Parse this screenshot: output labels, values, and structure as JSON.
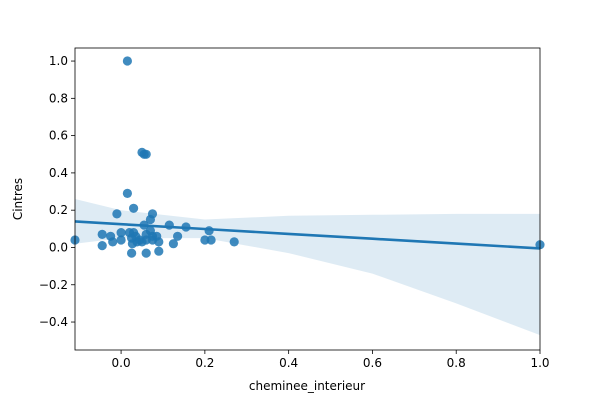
{
  "chart_data": {
    "type": "scatter",
    "title": "",
    "xlabel": "cheminee_interieur",
    "ylabel": "Cintres",
    "xlim": [
      -0.11,
      1.0
    ],
    "ylim": [
      -0.55,
      1.07
    ],
    "xticks": [
      0.0,
      0.2,
      0.4,
      0.6,
      0.8,
      1.0
    ],
    "xtick_labels": [
      "0.0",
      "0.2",
      "0.4",
      "0.6",
      "0.8",
      "1.0"
    ],
    "yticks": [
      -0.4,
      -0.2,
      0.0,
      0.2,
      0.4,
      0.6,
      0.8,
      1.0
    ],
    "ytick_labels": [
      "−0.4",
      "−0.2",
      "0.0",
      "0.2",
      "0.4",
      "0.6",
      "0.8",
      "1.0"
    ],
    "grid": false,
    "legend": "none",
    "point_color": "#1f77b4",
    "line_color": "#1f77b4",
    "band_color": "#1f77b4",
    "points": [
      {
        "x": -0.11,
        "y": 0.04
      },
      {
        "x": -0.045,
        "y": 0.01
      },
      {
        "x": -0.045,
        "y": 0.07
      },
      {
        "x": -0.025,
        "y": 0.06
      },
      {
        "x": -0.02,
        "y": 0.03
      },
      {
        "x": -0.01,
        "y": 0.18
      },
      {
        "x": 0.0,
        "y": 0.08
      },
      {
        "x": 0.0,
        "y": 0.04
      },
      {
        "x": 0.015,
        "y": 1.0
      },
      {
        "x": 0.015,
        "y": 0.29
      },
      {
        "x": 0.02,
        "y": 0.08
      },
      {
        "x": 0.025,
        "y": 0.05
      },
      {
        "x": 0.025,
        "y": -0.03
      },
      {
        "x": 0.027,
        "y": 0.02
      },
      {
        "x": 0.03,
        "y": 0.21
      },
      {
        "x": 0.03,
        "y": 0.08
      },
      {
        "x": 0.035,
        "y": 0.06
      },
      {
        "x": 0.038,
        "y": 0.03
      },
      {
        "x": 0.045,
        "y": 0.04
      },
      {
        "x": 0.05,
        "y": 0.51
      },
      {
        "x": 0.055,
        "y": 0.5
      },
      {
        "x": 0.06,
        "y": 0.5
      },
      {
        "x": 0.05,
        "y": 0.03
      },
      {
        "x": 0.055,
        "y": 0.12
      },
      {
        "x": 0.06,
        "y": 0.07
      },
      {
        "x": 0.06,
        "y": 0.04
      },
      {
        "x": 0.06,
        "y": -0.03
      },
      {
        "x": 0.07,
        "y": 0.15
      },
      {
        "x": 0.075,
        "y": 0.18
      },
      {
        "x": 0.07,
        "y": 0.09
      },
      {
        "x": 0.075,
        "y": 0.06
      },
      {
        "x": 0.075,
        "y": 0.04
      },
      {
        "x": 0.085,
        "y": 0.06
      },
      {
        "x": 0.09,
        "y": 0.03
      },
      {
        "x": 0.09,
        "y": -0.02
      },
      {
        "x": 0.115,
        "y": 0.12
      },
      {
        "x": 0.125,
        "y": 0.02
      },
      {
        "x": 0.135,
        "y": 0.06
      },
      {
        "x": 0.155,
        "y": 0.11
      },
      {
        "x": 0.2,
        "y": 0.04
      },
      {
        "x": 0.21,
        "y": 0.09
      },
      {
        "x": 0.215,
        "y": 0.04
      },
      {
        "x": 0.27,
        "y": 0.03
      },
      {
        "x": 1.0,
        "y": 0.015
      }
    ],
    "regression": {
      "x": [
        -0.11,
        0.0,
        0.2,
        0.4,
        0.6,
        0.8,
        1.0
      ],
      "y": [
        0.14,
        0.125,
        0.099,
        0.073,
        0.047,
        0.021,
        -0.005
      ],
      "ci_lower": [
        0.02,
        0.05,
        0.05,
        -0.03,
        -0.14,
        -0.3,
        -0.47
      ],
      "ci_upper": [
        0.26,
        0.2,
        0.15,
        0.17,
        0.175,
        0.18,
        0.18
      ]
    }
  }
}
